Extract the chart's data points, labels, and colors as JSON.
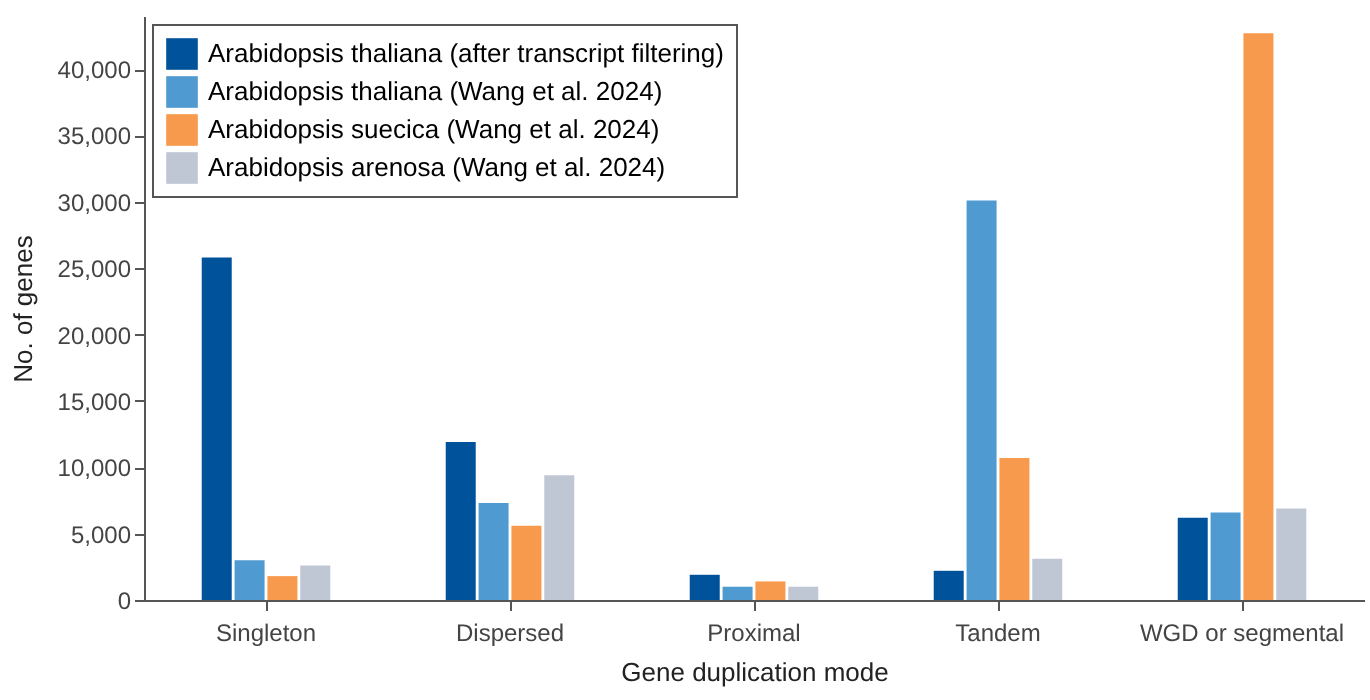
{
  "chart_data": {
    "type": "bar",
    "xlabel": "Gene duplication mode",
    "ylabel": "No. of genes",
    "categories": [
      "Singleton",
      "Dispersed",
      "Proximal",
      "Tandem",
      "WGD or segmental"
    ],
    "series": [
      {
        "name": "Arabidopsis thaliana (after transcript filtering)",
        "color": "#00539b",
        "values": [
          25800,
          11900,
          1900,
          2200,
          6200
        ]
      },
      {
        "name": "Arabidopsis thaliana (Wang et al. 2024)",
        "color": "#4f9ad0",
        "values": [
          3000,
          7300,
          1000,
          30100,
          6600
        ]
      },
      {
        "name": "Arabidopsis suecica (Wang et al. 2024)",
        "color": "#f79a4e",
        "values": [
          1800,
          5600,
          1400,
          10700,
          42700
        ]
      },
      {
        "name": "Arabidopsis arenosa (Wang et al. 2024)",
        "color": "#bfc6d4",
        "values": [
          2600,
          9400,
          1000,
          3100,
          6900
        ]
      }
    ],
    "ylim": [
      0,
      44000
    ],
    "yticks": [
      0,
      {
        "value": 5000,
        "label": "5,000"
      },
      {
        "value": 10000,
        "label": "10,000"
      },
      {
        "value": 15000,
        "label": "15,000"
      },
      {
        "value": 20000,
        "label": "20,000"
      },
      {
        "value": 25000,
        "label": "25,000"
      },
      {
        "value": 30000,
        "label": "30,000"
      },
      {
        "value": 35000,
        "label": "35,000"
      },
      {
        "value": 40000,
        "label": "40,000"
      }
    ],
    "grid": false,
    "legend": "top left"
  }
}
